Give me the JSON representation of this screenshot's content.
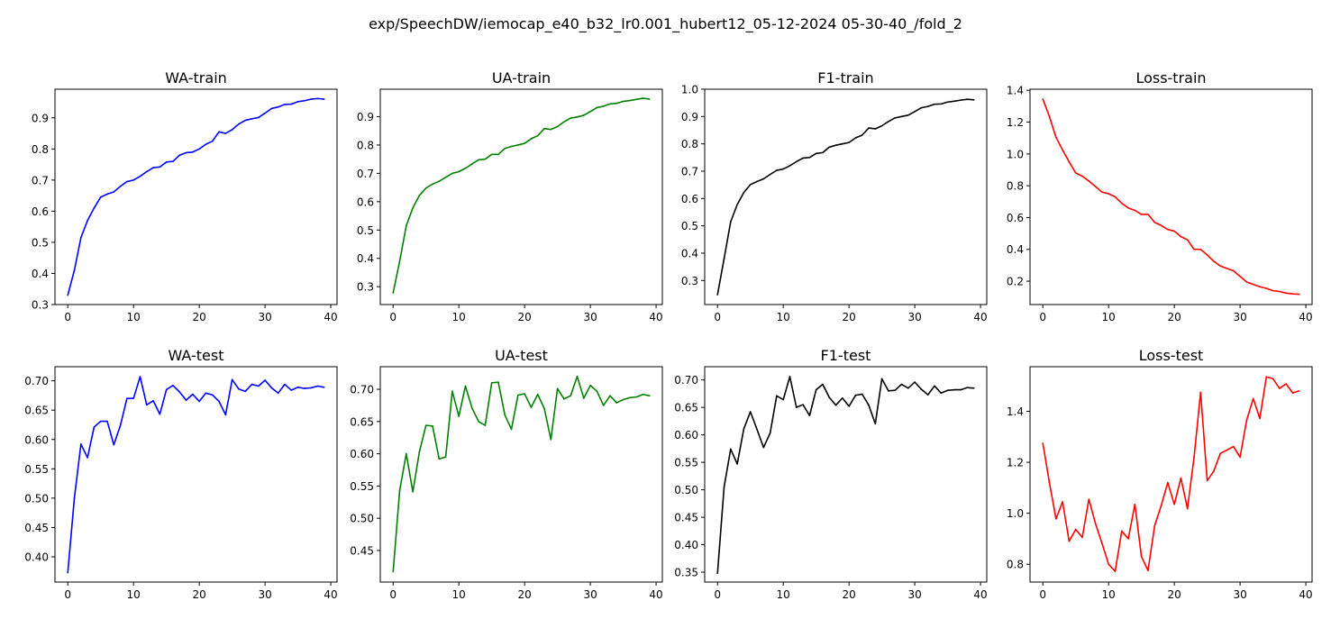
{
  "figure": {
    "suptitle": "exp/SpeechDW/iemocap_e40_b32_lr0.001_hubert12_05-12-2024 05-30-40_/fold_2"
  },
  "chart_data": [
    {
      "type": "line",
      "title": "WA-train",
      "color": "#0000ff",
      "xlim": [
        -1.95,
        40.95
      ],
      "ylim": [
        0.3,
        0.992
      ],
      "xticks": [
        0,
        10,
        20,
        30,
        40
      ],
      "yticks": [
        0.3,
        0.4,
        0.5,
        0.6,
        0.7,
        0.8,
        0.9
      ],
      "ytick_labels": [
        "0.3",
        "0.4",
        "0.5",
        "0.6",
        "0.7",
        "0.8",
        "0.9"
      ],
      "x": [
        0,
        1,
        2,
        3,
        4,
        5,
        6,
        7,
        8,
        9,
        10,
        11,
        12,
        13,
        14,
        15,
        16,
        17,
        18,
        19,
        20,
        21,
        22,
        23,
        24,
        25,
        26,
        27,
        28,
        29,
        30,
        31,
        32,
        33,
        34,
        35,
        36,
        37,
        38,
        39
      ],
      "values": [
        0.33,
        0.41,
        0.515,
        0.57,
        0.61,
        0.645,
        0.655,
        0.662,
        0.68,
        0.695,
        0.7,
        0.712,
        0.727,
        0.74,
        0.742,
        0.758,
        0.76,
        0.78,
        0.788,
        0.79,
        0.8,
        0.815,
        0.825,
        0.855,
        0.85,
        0.862,
        0.88,
        0.892,
        0.897,
        0.901,
        0.915,
        0.93,
        0.935,
        0.943,
        0.944,
        0.952,
        0.955,
        0.96,
        0.962,
        0.96
      ]
    },
    {
      "type": "line",
      "title": "UA-train",
      "color": "#008000",
      "xlim": [
        -1.95,
        40.95
      ],
      "ylim": [
        0.237,
        0.997
      ],
      "xticks": [
        0,
        10,
        20,
        30,
        40
      ],
      "yticks": [
        0.3,
        0.4,
        0.5,
        0.6,
        0.7,
        0.8,
        0.9
      ],
      "ytick_labels": [
        "0.3",
        "0.4",
        "0.5",
        "0.6",
        "0.7",
        "0.8",
        "0.9"
      ],
      "x": [
        0,
        1,
        2,
        3,
        4,
        5,
        6,
        7,
        8,
        9,
        10,
        11,
        12,
        13,
        14,
        15,
        16,
        17,
        18,
        19,
        20,
        21,
        22,
        23,
        24,
        25,
        26,
        27,
        28,
        29,
        30,
        31,
        32,
        33,
        34,
        35,
        36,
        37,
        38,
        39
      ],
      "values": [
        0.278,
        0.39,
        0.515,
        0.578,
        0.622,
        0.648,
        0.662,
        0.672,
        0.686,
        0.7,
        0.706,
        0.718,
        0.733,
        0.748,
        0.75,
        0.767,
        0.767,
        0.788,
        0.795,
        0.8,
        0.806,
        0.822,
        0.833,
        0.858,
        0.855,
        0.865,
        0.882,
        0.895,
        0.899,
        0.905,
        0.918,
        0.932,
        0.937,
        0.945,
        0.947,
        0.954,
        0.957,
        0.961,
        0.965,
        0.962
      ]
    },
    {
      "type": "line",
      "title": "F1-train",
      "color": "#000000",
      "xlim": [
        -1.95,
        40.95
      ],
      "ylim": [
        0.212,
        1.0
      ],
      "xticks": [
        0,
        10,
        20,
        30,
        40
      ],
      "yticks": [
        0.3,
        0.4,
        0.5,
        0.6,
        0.7,
        0.8,
        0.9,
        1.0
      ],
      "ytick_labels": [
        "0.3",
        "0.4",
        "0.5",
        "0.6",
        "0.7",
        "0.8",
        "0.9",
        "1.0"
      ],
      "x": [
        0,
        1,
        2,
        3,
        4,
        5,
        6,
        7,
        8,
        9,
        10,
        11,
        12,
        13,
        14,
        15,
        16,
        17,
        18,
        19,
        20,
        21,
        22,
        23,
        24,
        25,
        26,
        27,
        28,
        29,
        30,
        31,
        32,
        33,
        34,
        35,
        36,
        37,
        38,
        39
      ],
      "values": [
        0.248,
        0.38,
        0.515,
        0.578,
        0.622,
        0.651,
        0.662,
        0.672,
        0.688,
        0.703,
        0.708,
        0.72,
        0.735,
        0.748,
        0.75,
        0.765,
        0.768,
        0.788,
        0.795,
        0.8,
        0.805,
        0.822,
        0.832,
        0.858,
        0.855,
        0.866,
        0.882,
        0.895,
        0.9,
        0.905,
        0.918,
        0.932,
        0.937,
        0.945,
        0.946,
        0.953,
        0.956,
        0.96,
        0.963,
        0.961
      ]
    },
    {
      "type": "line",
      "title": "Loss-train",
      "color": "#ff0000",
      "xlim": [
        -1.95,
        40.95
      ],
      "ylim": [
        0.053,
        1.407
      ],
      "xticks": [
        0,
        10,
        20,
        30,
        40
      ],
      "yticks": [
        0.2,
        0.4,
        0.6,
        0.8,
        1.0,
        1.2,
        1.4
      ],
      "ytick_labels": [
        "0.2",
        "0.4",
        "0.6",
        "0.8",
        "1.0",
        "1.2",
        "1.4"
      ],
      "x": [
        0,
        1,
        2,
        3,
        4,
        5,
        6,
        7,
        8,
        9,
        10,
        11,
        12,
        13,
        14,
        15,
        16,
        17,
        18,
        19,
        20,
        21,
        22,
        23,
        24,
        25,
        26,
        27,
        28,
        29,
        30,
        31,
        32,
        33,
        34,
        35,
        36,
        37,
        38,
        39
      ],
      "values": [
        1.345,
        1.235,
        1.105,
        1.025,
        0.95,
        0.88,
        0.86,
        0.83,
        0.795,
        0.76,
        0.75,
        0.73,
        0.69,
        0.66,
        0.645,
        0.62,
        0.62,
        0.57,
        0.55,
        0.525,
        0.515,
        0.48,
        0.46,
        0.4,
        0.4,
        0.365,
        0.325,
        0.295,
        0.28,
        0.265,
        0.23,
        0.195,
        0.18,
        0.165,
        0.155,
        0.14,
        0.135,
        0.125,
        0.12,
        0.118
      ]
    },
    {
      "type": "line",
      "title": "WA-test",
      "color": "#0000ff",
      "xlim": [
        -1.95,
        40.95
      ],
      "ylim": [
        0.357,
        0.724
      ],
      "xticks": [
        0,
        10,
        20,
        30,
        40
      ],
      "yticks": [
        0.4,
        0.45,
        0.5,
        0.55,
        0.6,
        0.65,
        0.7
      ],
      "ytick_labels": [
        "0.40",
        "0.45",
        "0.50",
        "0.55",
        "0.60",
        "0.65",
        "0.70"
      ],
      "x": [
        0,
        1,
        2,
        3,
        4,
        5,
        6,
        7,
        8,
        9,
        10,
        11,
        12,
        13,
        14,
        15,
        16,
        17,
        18,
        19,
        20,
        21,
        22,
        23,
        24,
        25,
        26,
        27,
        28,
        29,
        30,
        31,
        32,
        33,
        34,
        35,
        36,
        37,
        38,
        39
      ],
      "values": [
        0.373,
        0.5,
        0.592,
        0.569,
        0.621,
        0.631,
        0.631,
        0.591,
        0.624,
        0.67,
        0.67,
        0.707,
        0.659,
        0.666,
        0.643,
        0.685,
        0.692,
        0.681,
        0.667,
        0.677,
        0.665,
        0.679,
        0.676,
        0.665,
        0.642,
        0.702,
        0.686,
        0.682,
        0.694,
        0.691,
        0.701,
        0.688,
        0.679,
        0.694,
        0.684,
        0.689,
        0.687,
        0.688,
        0.691,
        0.689
      ]
    },
    {
      "type": "line",
      "title": "UA-test",
      "color": "#008000",
      "xlim": [
        -1.95,
        40.95
      ],
      "ylim": [
        0.401,
        0.735
      ],
      "xticks": [
        0,
        10,
        20,
        30,
        40
      ],
      "yticks": [
        0.45,
        0.5,
        0.55,
        0.6,
        0.65,
        0.7
      ],
      "ytick_labels": [
        "0.45",
        "0.50",
        "0.55",
        "0.60",
        "0.65",
        "0.70"
      ],
      "x": [
        0,
        1,
        2,
        3,
        4,
        5,
        6,
        7,
        8,
        9,
        10,
        11,
        12,
        13,
        14,
        15,
        16,
        17,
        18,
        19,
        20,
        21,
        22,
        23,
        24,
        25,
        26,
        27,
        28,
        29,
        30,
        31,
        32,
        33,
        34,
        35,
        36,
        37,
        38,
        39
      ],
      "values": [
        0.417,
        0.543,
        0.6,
        0.541,
        0.603,
        0.644,
        0.643,
        0.592,
        0.595,
        0.697,
        0.658,
        0.705,
        0.671,
        0.65,
        0.644,
        0.71,
        0.711,
        0.66,
        0.638,
        0.691,
        0.693,
        0.672,
        0.692,
        0.67,
        0.622,
        0.701,
        0.685,
        0.69,
        0.72,
        0.686,
        0.706,
        0.697,
        0.675,
        0.69,
        0.679,
        0.684,
        0.687,
        0.688,
        0.692,
        0.69
      ]
    },
    {
      "type": "line",
      "title": "F1-test",
      "color": "#000000",
      "xlim": [
        -1.95,
        40.95
      ],
      "ylim": [
        0.332,
        0.724
      ],
      "xticks": [
        0,
        10,
        20,
        30,
        40
      ],
      "yticks": [
        0.35,
        0.4,
        0.45,
        0.5,
        0.55,
        0.6,
        0.65,
        0.7
      ],
      "ytick_labels": [
        "0.35",
        "0.40",
        "0.45",
        "0.50",
        "0.55",
        "0.60",
        "0.65",
        "0.70"
      ],
      "x": [
        0,
        1,
        2,
        3,
        4,
        5,
        6,
        7,
        8,
        9,
        10,
        11,
        12,
        13,
        14,
        15,
        16,
        17,
        18,
        19,
        20,
        21,
        22,
        23,
        24,
        25,
        26,
        27,
        28,
        29,
        30,
        31,
        32,
        33,
        34,
        35,
        36,
        37,
        38,
        39
      ],
      "values": [
        0.348,
        0.505,
        0.574,
        0.547,
        0.611,
        0.642,
        0.61,
        0.577,
        0.603,
        0.671,
        0.664,
        0.706,
        0.65,
        0.655,
        0.635,
        0.682,
        0.692,
        0.668,
        0.654,
        0.667,
        0.652,
        0.672,
        0.674,
        0.654,
        0.62,
        0.702,
        0.68,
        0.681,
        0.692,
        0.685,
        0.696,
        0.683,
        0.673,
        0.689,
        0.676,
        0.681,
        0.682,
        0.682,
        0.686,
        0.685
      ]
    },
    {
      "type": "line",
      "title": "Loss-test",
      "color": "#ff0000",
      "xlim": [
        -1.95,
        40.95
      ],
      "ylim": [
        0.73,
        1.575
      ],
      "xticks": [
        0,
        10,
        20,
        30,
        40
      ],
      "yticks": [
        0.8,
        1.0,
        1.2,
        1.4
      ],
      "ytick_labels": [
        "0.8",
        "1.0",
        "1.2",
        "1.4"
      ],
      "x": [
        0,
        1,
        2,
        3,
        4,
        5,
        6,
        7,
        8,
        9,
        10,
        11,
        12,
        13,
        14,
        15,
        16,
        17,
        18,
        19,
        20,
        21,
        22,
        23,
        24,
        25,
        26,
        27,
        28,
        29,
        30,
        31,
        32,
        33,
        34,
        35,
        36,
        37,
        38,
        39
      ],
      "values": [
        1.275,
        1.12,
        0.978,
        1.045,
        0.89,
        0.937,
        0.905,
        1.055,
        0.96,
        0.882,
        0.8,
        0.772,
        0.93,
        0.9,
        1.035,
        0.83,
        0.775,
        0.95,
        1.03,
        1.12,
        1.035,
        1.138,
        1.018,
        1.22,
        1.475,
        1.128,
        1.165,
        1.235,
        1.248,
        1.262,
        1.22,
        1.365,
        1.45,
        1.372,
        1.535,
        1.528,
        1.49,
        1.508,
        1.472,
        1.48
      ]
    }
  ]
}
